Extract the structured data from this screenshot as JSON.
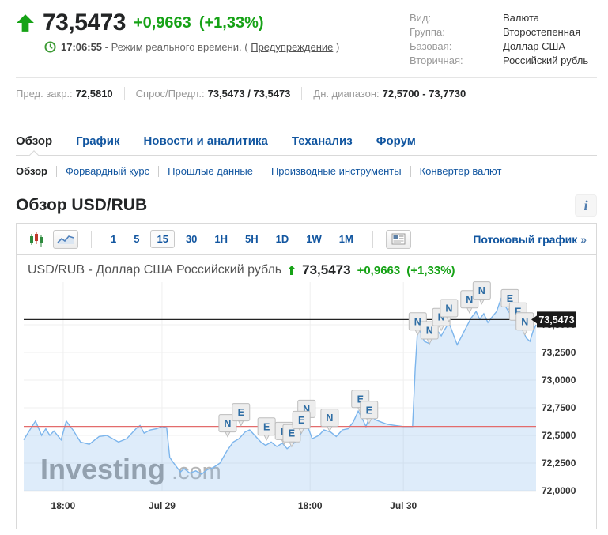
{
  "colors": {
    "green": "#16A216",
    "blue": "#1256A0",
    "line": "#7CB5EC",
    "area": "rgba(124,181,236,0.25)",
    "redline": "#E36C6C",
    "blackline": "#222222",
    "flag_bg": "#EDEDED",
    "flag_border": "#BDBDBD",
    "flag_letter": "#2E6DA4",
    "tag_bg": "#1B1B1B",
    "grid": "#EFEFEF"
  },
  "header": {
    "price": "73,5473",
    "change": "+0,9663",
    "change_pct": "(+1,33%)",
    "time": "17:06:55",
    "time_note": "- Режим реального времени. (",
    "warning_link": "Предупреждение",
    "time_note_close": ")",
    "details": [
      {
        "label": "Вид:",
        "value": "Валюта"
      },
      {
        "label": "Группа:",
        "value": "Второстепенная"
      },
      {
        "label": "Базовая:",
        "value": "Доллар США"
      },
      {
        "label": "Вторичная:",
        "value": "Российский рубль"
      }
    ]
  },
  "stats": [
    {
      "label": "Пред. закр.:",
      "value": "72,5810"
    },
    {
      "label": "Спрос/Предл.:",
      "value": "73,5473 / 73,5473"
    },
    {
      "label": "Дн. диапазон:",
      "value": "72,5700 - 73,7730"
    }
  ],
  "tabs": {
    "main": [
      {
        "label": "Обзор"
      },
      {
        "label": "График"
      },
      {
        "label": "Новости и аналитика"
      },
      {
        "label": "Теханализ"
      },
      {
        "label": "Форум"
      }
    ],
    "sub": [
      {
        "label": "Обзор"
      },
      {
        "label": "Форвардный курс"
      },
      {
        "label": "Прошлые данные"
      },
      {
        "label": "Производные инструменты"
      },
      {
        "label": "Конвертер валют"
      }
    ]
  },
  "section": {
    "title": "Обзор USD/RUB",
    "info_icon": "i"
  },
  "toolbar": {
    "intervals": [
      "1",
      "5",
      "15",
      "30",
      "1H",
      "5H",
      "1D",
      "1W",
      "1M"
    ],
    "selected_interval": "15",
    "streaming_link": "Потоковый график",
    "chevron": "»"
  },
  "chart_header": {
    "title": "USD/RUB - Доллар США Российский рубль",
    "price": "73,5473",
    "change": "+0,9663",
    "change_pct": "(+1,33%)"
  },
  "chart_data": {
    "type": "area",
    "title": "USD/RUB - Доллар США Российский рубль",
    "interval": "15 min",
    "ylim": [
      72.0,
      73.886
    ],
    "y_ticks": [
      72.0,
      72.25,
      72.5,
      72.75,
      73.0,
      73.25,
      73.5
    ],
    "y_tick_labels": [
      "72,0000",
      "72,2500",
      "72,5000",
      "72,7500",
      "73,0000",
      "73,2500",
      "73,5000"
    ],
    "x_tick_labels": [
      {
        "f": 0.077,
        "label": "18:00"
      },
      {
        "f": 0.27,
        "label": "Jul 29"
      },
      {
        "f": 0.559,
        "label": "18:00"
      },
      {
        "f": 0.741,
        "label": "Jul 30"
      }
    ],
    "current_price_tag": {
      "label": "73,5473",
      "value": 73.5473
    },
    "hlines": [
      {
        "value": 73.5473,
        "color": "#222222",
        "name": "current-price-line"
      },
      {
        "value": 72.581,
        "color": "#E36C6C",
        "name": "previous-close-line"
      }
    ],
    "watermark": {
      "text1": "Investing",
      "text2": ".com"
    },
    "points": [
      [
        0.0,
        72.46
      ],
      [
        0.012,
        72.55
      ],
      [
        0.023,
        72.63
      ],
      [
        0.035,
        72.5
      ],
      [
        0.043,
        72.56
      ],
      [
        0.051,
        72.5
      ],
      [
        0.059,
        72.54
      ],
      [
        0.073,
        72.46
      ],
      [
        0.083,
        72.63
      ],
      [
        0.096,
        72.55
      ],
      [
        0.111,
        72.44
      ],
      [
        0.128,
        72.42
      ],
      [
        0.147,
        72.49
      ],
      [
        0.162,
        72.5
      ],
      [
        0.185,
        72.44
      ],
      [
        0.201,
        72.47
      ],
      [
        0.219,
        72.56
      ],
      [
        0.227,
        72.59
      ],
      [
        0.235,
        72.52
      ],
      [
        0.247,
        72.55
      ],
      [
        0.259,
        72.56
      ],
      [
        0.27,
        72.58
      ],
      [
        0.279,
        72.57
      ],
      [
        0.285,
        72.3
      ],
      [
        0.296,
        72.23
      ],
      [
        0.306,
        72.17
      ],
      [
        0.313,
        72.2
      ],
      [
        0.324,
        72.16
      ],
      [
        0.336,
        72.18
      ],
      [
        0.347,
        72.15
      ],
      [
        0.358,
        72.19
      ],
      [
        0.37,
        72.21
      ],
      [
        0.383,
        72.25
      ],
      [
        0.398,
        72.37
      ],
      [
        0.409,
        72.44
      ],
      [
        0.42,
        72.47
      ],
      [
        0.432,
        72.53
      ],
      [
        0.441,
        72.55
      ],
      [
        0.451,
        72.5
      ],
      [
        0.463,
        72.44
      ],
      [
        0.472,
        72.41
      ],
      [
        0.483,
        72.44
      ],
      [
        0.494,
        72.4
      ],
      [
        0.505,
        72.43
      ],
      [
        0.514,
        72.38
      ],
      [
        0.525,
        72.42
      ],
      [
        0.537,
        72.47
      ],
      [
        0.548,
        72.6
      ],
      [
        0.556,
        72.56
      ],
      [
        0.563,
        72.47
      ],
      [
        0.576,
        72.5
      ],
      [
        0.586,
        72.55
      ],
      [
        0.599,
        72.53
      ],
      [
        0.61,
        72.49
      ],
      [
        0.622,
        72.55
      ],
      [
        0.633,
        72.56
      ],
      [
        0.643,
        72.62
      ],
      [
        0.653,
        72.72
      ],
      [
        0.66,
        72.66
      ],
      [
        0.668,
        72.58
      ],
      [
        0.676,
        72.68
      ],
      [
        0.687,
        72.64
      ],
      [
        0.698,
        72.62
      ],
      [
        0.71,
        72.6
      ],
      [
        0.725,
        72.59
      ],
      [
        0.741,
        72.58
      ],
      [
        0.759,
        72.58
      ],
      [
        0.764,
        73.1
      ],
      [
        0.769,
        73.47
      ],
      [
        0.775,
        73.43
      ],
      [
        0.782,
        73.35
      ],
      [
        0.792,
        73.33
      ],
      [
        0.799,
        73.42
      ],
      [
        0.807,
        73.45
      ],
      [
        0.815,
        73.4
      ],
      [
        0.822,
        73.46
      ],
      [
        0.83,
        73.52
      ],
      [
        0.838,
        73.42
      ],
      [
        0.846,
        73.32
      ],
      [
        0.853,
        73.38
      ],
      [
        0.864,
        73.48
      ],
      [
        0.873,
        73.56
      ],
      [
        0.883,
        73.62
      ],
      [
        0.89,
        73.55
      ],
      [
        0.898,
        73.6
      ],
      [
        0.906,
        73.52
      ],
      [
        0.914,
        73.57
      ],
      [
        0.923,
        73.62
      ],
      [
        0.932,
        73.74
      ],
      [
        0.941,
        73.66
      ],
      [
        0.949,
        73.6
      ],
      [
        0.957,
        73.64
      ],
      [
        0.966,
        73.57
      ],
      [
        0.974,
        73.45
      ],
      [
        0.981,
        73.38
      ],
      [
        0.988,
        73.35
      ],
      [
        0.994,
        73.44
      ],
      [
        1.0,
        73.5
      ]
    ],
    "event_markers": [
      {
        "letter": "N",
        "x": 0.398,
        "v": 72.61
      },
      {
        "letter": "E",
        "x": 0.424,
        "v": 72.71
      },
      {
        "letter": "E",
        "x": 0.474,
        "v": 72.58
      },
      {
        "letter": "E",
        "x": 0.508,
        "v": 72.54
      },
      {
        "letter": "E",
        "x": 0.523,
        "v": 72.52
      },
      {
        "letter": "N",
        "x": 0.552,
        "v": 72.74
      },
      {
        "letter": "E",
        "x": 0.542,
        "v": 72.64
      },
      {
        "letter": "N",
        "x": 0.597,
        "v": 72.66
      },
      {
        "letter": "E",
        "x": 0.657,
        "v": 72.83
      },
      {
        "letter": "E",
        "x": 0.674,
        "v": 72.73
      },
      {
        "letter": "N",
        "x": 0.769,
        "v": 73.53
      },
      {
        "letter": "N",
        "x": 0.792,
        "v": 73.45
      },
      {
        "letter": "N",
        "x": 0.815,
        "v": 73.57
      },
      {
        "letter": "N",
        "x": 0.83,
        "v": 73.65
      },
      {
        "letter": "N",
        "x": 0.87,
        "v": 73.73
      },
      {
        "letter": "N",
        "x": 0.894,
        "v": 73.81
      },
      {
        "letter": "E",
        "x": 0.949,
        "v": 73.74
      },
      {
        "letter": "E",
        "x": 0.965,
        "v": 73.62
      },
      {
        "letter": "N",
        "x": 0.978,
        "v": 73.53
      }
    ]
  }
}
